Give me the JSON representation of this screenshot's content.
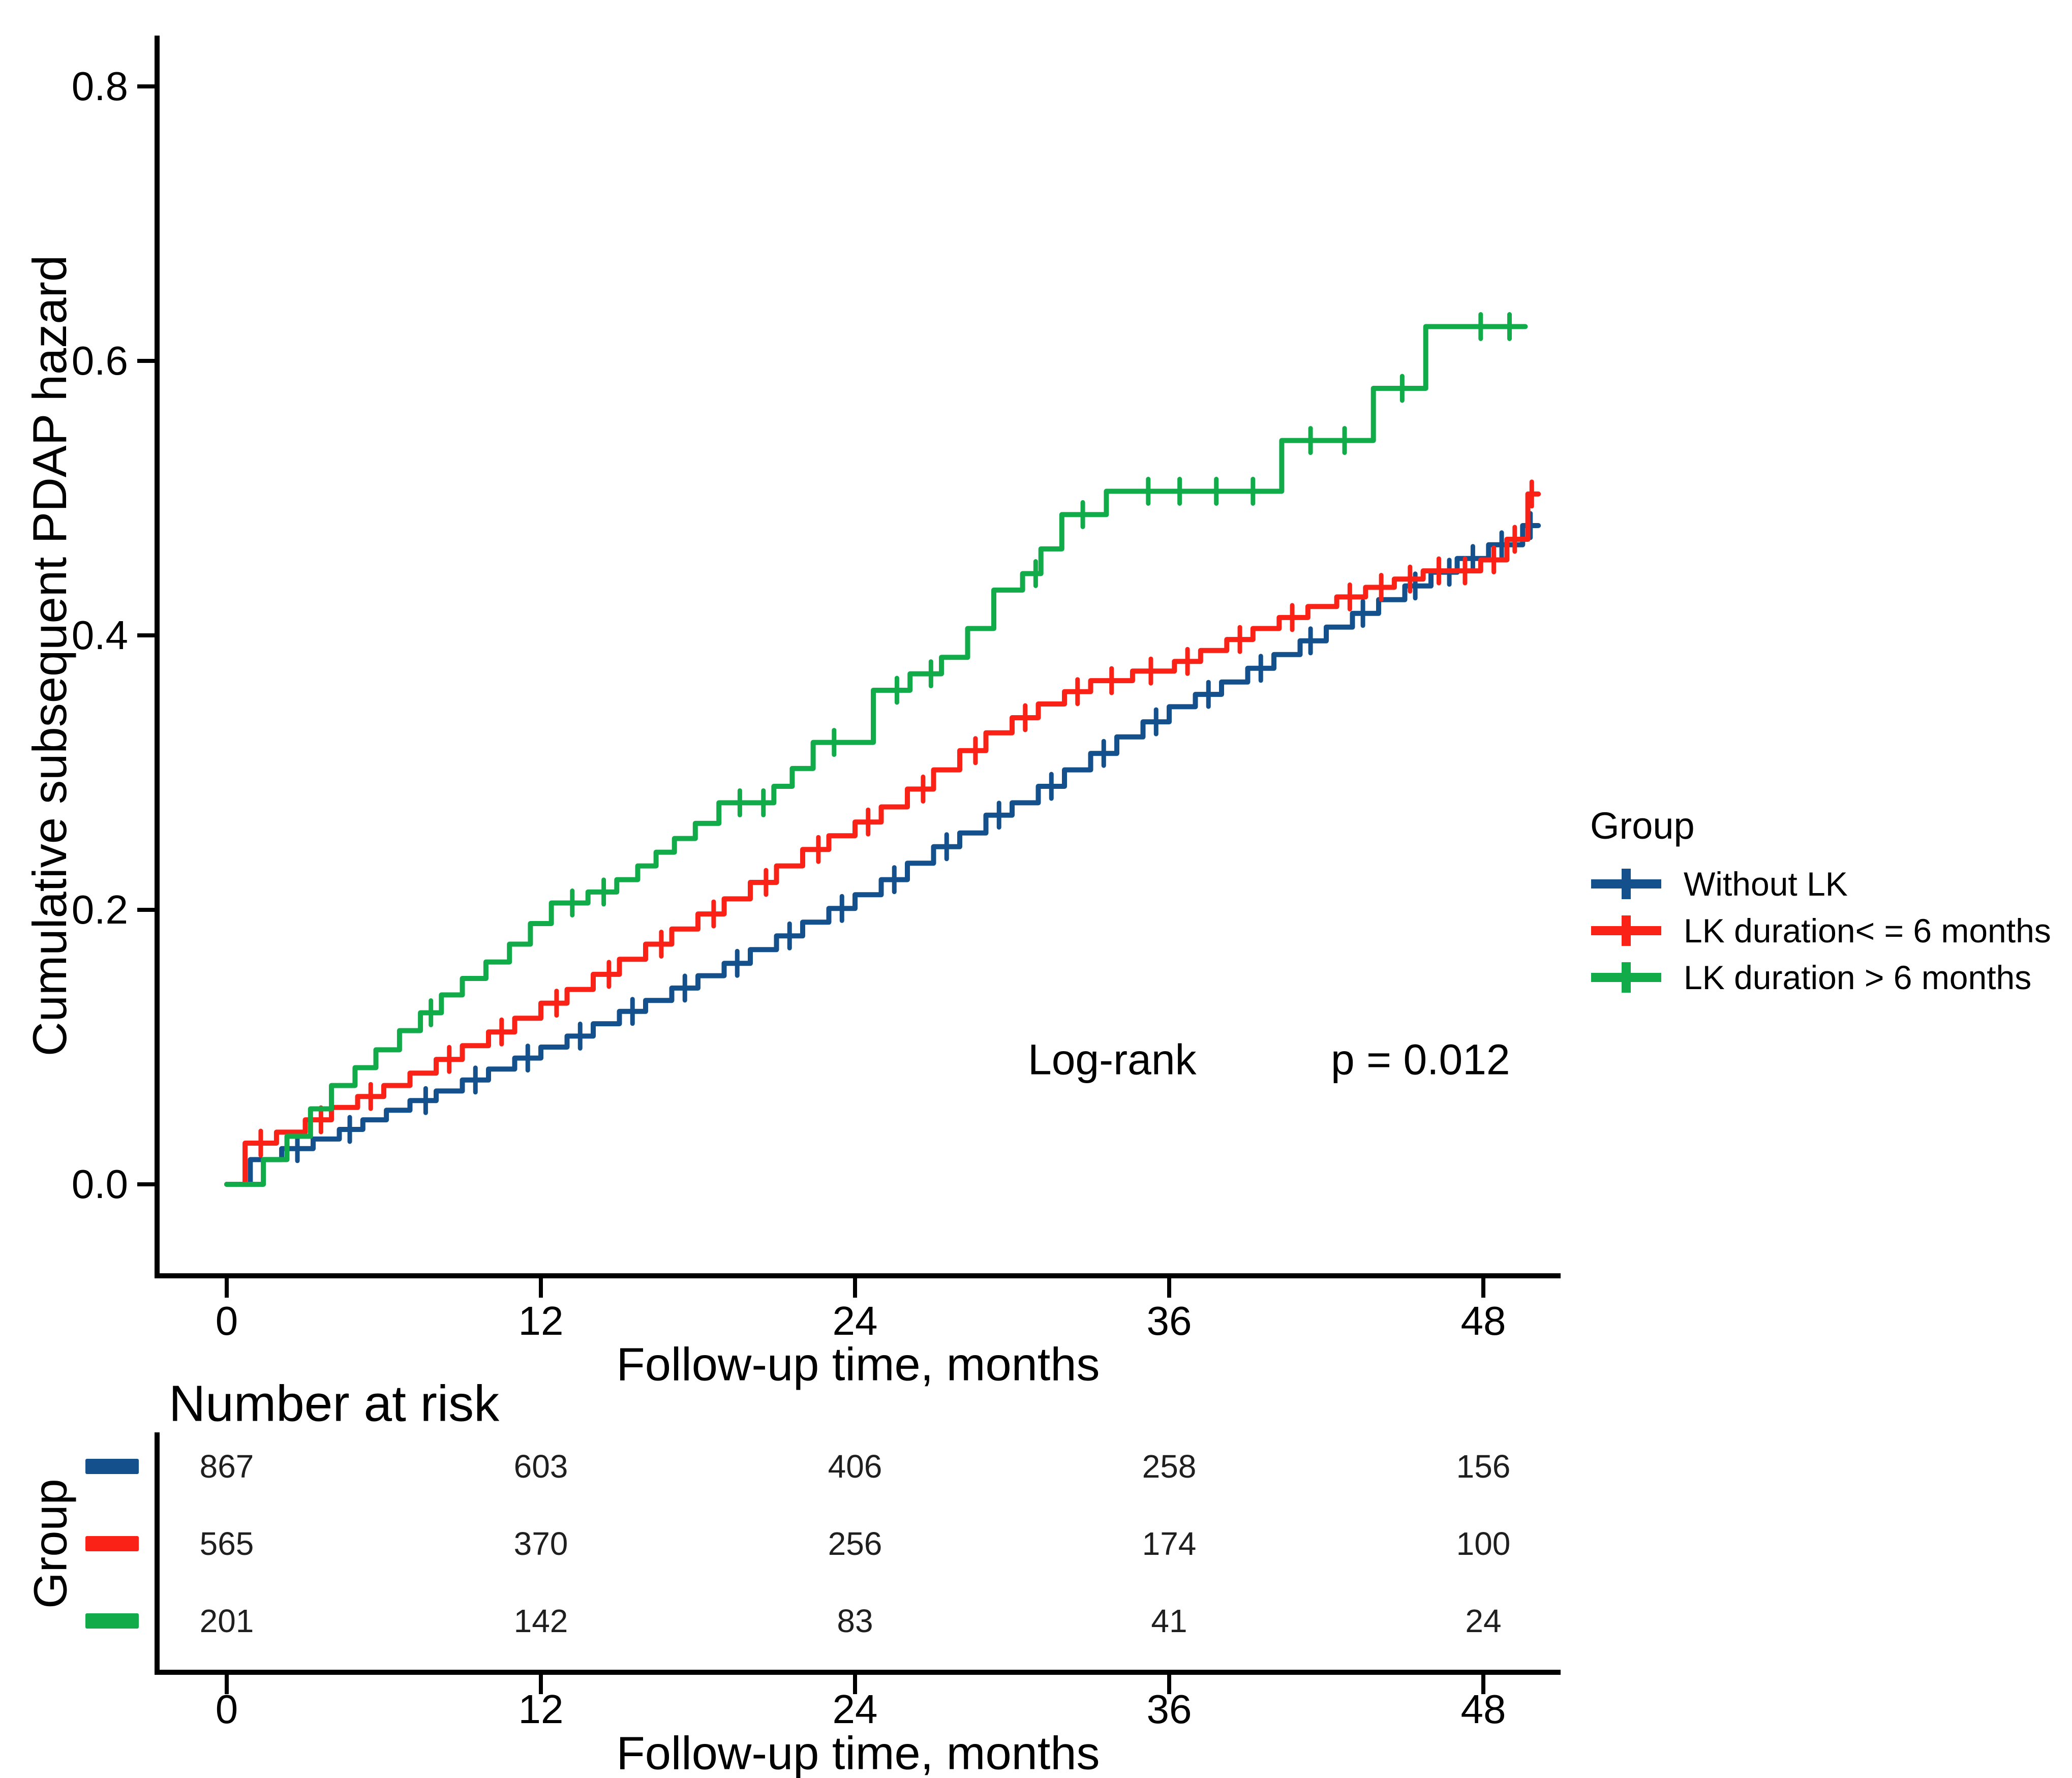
{
  "figure_title": "",
  "chart_data": {
    "type": "line",
    "subtype": "step-cumulative-hazard",
    "title": "",
    "ylabel": "Cumulative subsequent PDAP hazard",
    "xlabel": "Follow-up time, months",
    "xlim": [
      0,
      51
    ],
    "ylim": [
      0,
      0.85
    ],
    "xticks": [
      0,
      12,
      24,
      36,
      48
    ],
    "yticks": [
      0.0,
      0.2,
      0.4,
      0.6,
      0.8
    ],
    "grid": false,
    "legend_position": "right",
    "legend_title": "Group",
    "annotation": {
      "text": "Log-rank",
      "p": "p = 0.012"
    },
    "axis_color": "#000000",
    "series": [
      {
        "name": "Without LK",
        "color": "#14508c",
        "end": 50.1,
        "steps": [
          [
            0,
            0
          ],
          [
            0.9,
            0.018
          ],
          [
            2.1,
            0.026
          ],
          [
            3.3,
            0.033
          ],
          [
            4.3,
            0.04
          ],
          [
            5.2,
            0.047
          ],
          [
            6.1,
            0.054
          ],
          [
            7,
            0.061
          ],
          [
            8,
            0.068
          ],
          [
            9,
            0.076
          ],
          [
            10,
            0.084
          ],
          [
            11,
            0.092
          ],
          [
            12,
            0.1
          ],
          [
            13,
            0.108
          ],
          [
            14,
            0.117
          ],
          [
            15,
            0.126
          ],
          [
            16,
            0.134
          ],
          [
            17,
            0.143
          ],
          [
            18,
            0.152
          ],
          [
            19,
            0.161
          ],
          [
            20,
            0.171
          ],
          [
            21,
            0.181
          ],
          [
            22,
            0.191
          ],
          [
            23,
            0.201
          ],
          [
            24,
            0.211
          ],
          [
            25,
            0.222
          ],
          [
            26,
            0.234
          ],
          [
            27,
            0.246
          ],
          [
            28,
            0.256
          ],
          [
            29,
            0.269
          ],
          [
            30,
            0.278
          ],
          [
            31,
            0.29
          ],
          [
            32,
            0.302
          ],
          [
            33,
            0.314
          ],
          [
            34,
            0.326
          ],
          [
            35,
            0.337
          ],
          [
            36,
            0.348
          ],
          [
            37,
            0.357
          ],
          [
            38,
            0.366
          ],
          [
            39,
            0.376
          ],
          [
            40,
            0.386
          ],
          [
            41,
            0.396
          ],
          [
            42,
            0.406
          ],
          [
            43,
            0.416
          ],
          [
            44,
            0.426
          ],
          [
            45,
            0.436
          ],
          [
            46,
            0.446
          ],
          [
            47,
            0.456
          ],
          [
            48.2,
            0.466
          ],
          [
            49.5,
            0.48
          ]
        ],
        "censor_times": [
          2.7,
          4.7,
          7.6,
          9.5,
          11.5,
          13.5,
          15.5,
          17.5,
          19.5,
          21.5,
          23.5,
          25.5,
          27.5,
          29.5,
          31.5,
          33.5,
          35.5,
          37.5,
          39.5,
          41.4,
          43.4,
          45.4,
          46.7,
          47.6,
          48.7,
          49.8
        ]
      },
      {
        "name": "LK duration< = 6 months",
        "color": "#fa2116",
        "end": 50.1,
        "steps": [
          [
            0,
            0
          ],
          [
            0.7,
            0.03
          ],
          [
            1.9,
            0.038
          ],
          [
            3,
            0.047
          ],
          [
            4,
            0.056
          ],
          [
            5,
            0.064
          ],
          [
            6,
            0.072
          ],
          [
            7,
            0.081
          ],
          [
            8,
            0.091
          ],
          [
            9,
            0.101
          ],
          [
            10,
            0.111
          ],
          [
            11,
            0.121
          ],
          [
            12,
            0.132
          ],
          [
            13,
            0.142
          ],
          [
            14,
            0.153
          ],
          [
            15,
            0.164
          ],
          [
            16,
            0.175
          ],
          [
            17,
            0.186
          ],
          [
            18,
            0.197
          ],
          [
            19,
            0.208
          ],
          [
            20,
            0.22
          ],
          [
            21,
            0.232
          ],
          [
            22,
            0.244
          ],
          [
            23,
            0.254
          ],
          [
            24,
            0.264
          ],
          [
            25,
            0.275
          ],
          [
            26,
            0.288
          ],
          [
            27,
            0.302
          ],
          [
            28,
            0.316
          ],
          [
            29,
            0.329
          ],
          [
            30,
            0.34
          ],
          [
            31,
            0.35
          ],
          [
            32,
            0.359
          ],
          [
            33,
            0.367
          ],
          [
            34.6,
            0.374
          ],
          [
            36.2,
            0.381
          ],
          [
            37.2,
            0.389
          ],
          [
            38.2,
            0.397
          ],
          [
            39.2,
            0.405
          ],
          [
            40.2,
            0.413
          ],
          [
            41.3,
            0.421
          ],
          [
            42.4,
            0.428
          ],
          [
            43.5,
            0.435
          ],
          [
            44.6,
            0.441
          ],
          [
            45.7,
            0.447
          ],
          [
            47.9,
            0.455
          ],
          [
            48.9,
            0.47
          ],
          [
            49.7,
            0.503
          ]
        ],
        "censor_times": [
          1.3,
          3.6,
          5.5,
          8.5,
          10.5,
          12.6,
          14.6,
          16.6,
          18.6,
          20.6,
          22.6,
          24.5,
          26.6,
          28.6,
          30.5,
          32.5,
          33.8,
          35.3,
          36.7,
          38.7,
          40.7,
          42.9,
          44.1,
          45.2,
          46.3,
          47.3,
          48.4,
          49.2,
          49.85
        ]
      },
      {
        "name": "LK duration > 6 months",
        "color": "#12ab49",
        "end": 49.6,
        "steps": [
          [
            0,
            0
          ],
          [
            1.4,
            0.018
          ],
          [
            2.3,
            0.035
          ],
          [
            3.2,
            0.055
          ],
          [
            4,
            0.072
          ],
          [
            4.9,
            0.085
          ],
          [
            5.7,
            0.098
          ],
          [
            6.6,
            0.112
          ],
          [
            7.4,
            0.125
          ],
          [
            8.2,
            0.138
          ],
          [
            9,
            0.15
          ],
          [
            9.9,
            0.162
          ],
          [
            10.8,
            0.175
          ],
          [
            11.6,
            0.19
          ],
          [
            12.4,
            0.205
          ],
          [
            13.8,
            0.213
          ],
          [
            14.9,
            0.222
          ],
          [
            15.7,
            0.232
          ],
          [
            16.4,
            0.242
          ],
          [
            17.1,
            0.252
          ],
          [
            17.9,
            0.263
          ],
          [
            18.8,
            0.278
          ],
          [
            20.9,
            0.29
          ],
          [
            21.6,
            0.303
          ],
          [
            22.4,
            0.322
          ],
          [
            24.7,
            0.36
          ],
          [
            26.1,
            0.372
          ],
          [
            27.3,
            0.384
          ],
          [
            28.3,
            0.405
          ],
          [
            29.3,
            0.433
          ],
          [
            30.4,
            0.445
          ],
          [
            31.1,
            0.463
          ],
          [
            31.9,
            0.488
          ],
          [
            33.6,
            0.505
          ],
          [
            40.3,
            0.542
          ],
          [
            43.8,
            0.58
          ],
          [
            45.8,
            0.625
          ]
        ],
        "censor_times": [
          7.8,
          13.2,
          14.4,
          19.6,
          20.5,
          23.2,
          25.6,
          26.9,
          30.9,
          32.7,
          35.2,
          36.4,
          37.8,
          39.2,
          41.4,
          42.7,
          44.9,
          47.9,
          49.0
        ]
      }
    ],
    "number_at_risk": {
      "title": "Number at risk",
      "ylabel": "Group",
      "xlabel": "Follow-up time, months",
      "times": [
        0,
        12,
        24,
        36,
        48
      ],
      "rows": [
        {
          "name": "Without LK",
          "color": "#14508c",
          "values": [
            867,
            603,
            406,
            258,
            156
          ]
        },
        {
          "name": "LK duration< = 6 months",
          "color": "#fa2116",
          "values": [
            565,
            370,
            256,
            174,
            100
          ]
        },
        {
          "name": "LK duration > 6 months",
          "color": "#12ab49",
          "values": [
            201,
            142,
            83,
            41,
            24
          ]
        }
      ]
    }
  }
}
